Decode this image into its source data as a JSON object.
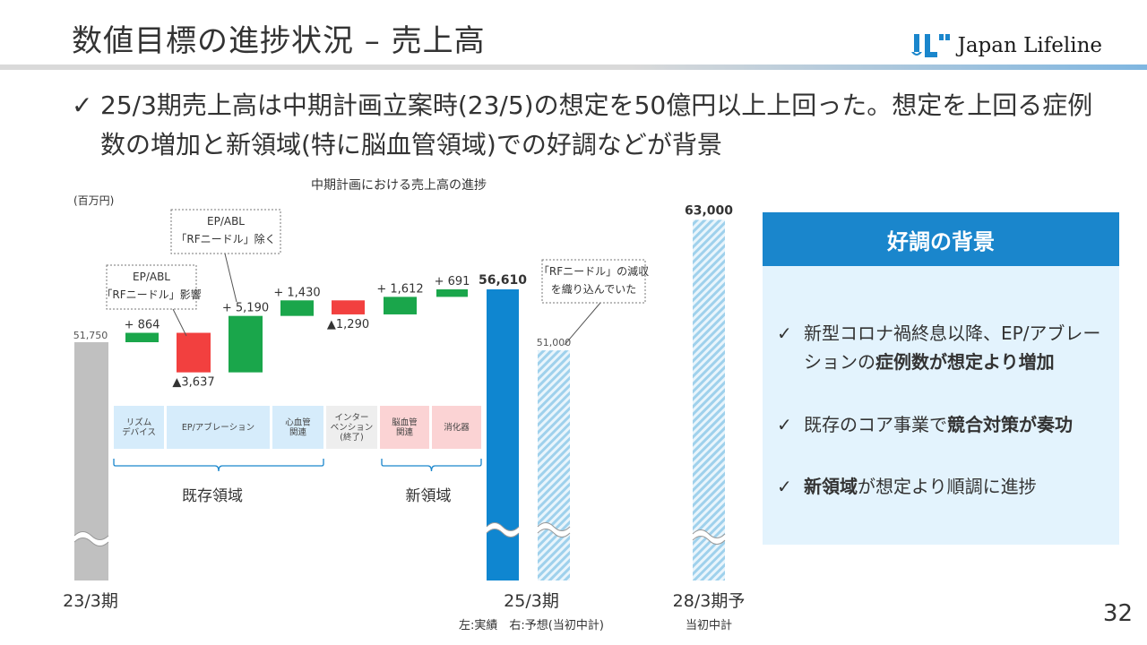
{
  "page": {
    "title": "数値目標の進捗状況 – 売上高",
    "logo_text": "Japan Lifeline",
    "headline_check": "✓",
    "headline": "25/3期売上高は中期計画立案時(23/5)の想定を50億円以上上回った。想定を上回る症例数の増加と新領域(特に脳血管領域)での好調などが背景",
    "page_number": "32"
  },
  "chart_data": {
    "type": "bar",
    "title": "中期計画における売上高の進捗",
    "unit_label": "(百万円)",
    "base": {
      "label": "23/3期",
      "value": 51750,
      "value_label": "51,750"
    },
    "steps": [
      {
        "value": 864,
        "label": "+ 864",
        "direction": "up"
      },
      {
        "value": -3637,
        "label": "▲3,637",
        "direction": "down"
      },
      {
        "value": 5190,
        "label": "+ 5,190",
        "direction": "up"
      },
      {
        "value": 1430,
        "label": "+ 1,430",
        "direction": "up"
      },
      {
        "value": -1290,
        "label": "▲1,290",
        "direction": "down"
      },
      {
        "value": 1612,
        "label": "+ 1,612",
        "direction": "up"
      },
      {
        "value": 691,
        "label": "+ 691",
        "direction": "up"
      }
    ],
    "actual_2503": {
      "value": 56610,
      "value_label": "56,610"
    },
    "plan_2503": {
      "value": 51000,
      "value_label": "51,000"
    },
    "target_2803": {
      "value": 63000,
      "value_label": "63,000"
    },
    "x_labels": [
      "23/3期",
      "25/3期",
      "28/3期予"
    ],
    "x_sublabels": [
      "左:実績　右:予想(当初中計)",
      "当初中計"
    ],
    "categories": [
      {
        "label": [
          "リズム",
          "デバイス"
        ],
        "group": "existing"
      },
      {
        "label": [
          "EP/アブレーション"
        ],
        "group": "existing"
      },
      {
        "label": [
          "心血管",
          "関連"
        ],
        "group": "existing"
      },
      {
        "label": [
          "インター",
          "ベンション",
          "(終了)"
        ],
        "group": "ended"
      },
      {
        "label": [
          "脳血管",
          "関連"
        ],
        "group": "new"
      },
      {
        "label": [
          "消化器"
        ],
        "group": "new"
      }
    ],
    "group_labels": {
      "existing": "既存領域",
      "new": "新領域"
    },
    "callouts": [
      {
        "lines": [
          "EP/ABL",
          "「RFニードル」影響"
        ]
      },
      {
        "lines": [
          "EP/ABL",
          "「RFニードル」除く"
        ]
      },
      {
        "lines": [
          "「RFニードル」の減収",
          "を織り込んでいた"
        ]
      }
    ],
    "colors": {
      "base": "#c0c0c0",
      "up": "#1aa64b",
      "down": "#f2403f",
      "actual": "#0f86d0",
      "plan_hatch": "#9fd1ec",
      "cat_existing": "#d6ecfb",
      "cat_ended": "#eeeeee",
      "cat_new": "#fbd3d4"
    }
  },
  "panel": {
    "title": "好調の背景",
    "check": "✓",
    "points": [
      {
        "pre": "新型コロナ禍終息以降、EP/アブレーションの",
        "bold": "症例数が想定より増加",
        "post": ""
      },
      {
        "pre": "既存のコア事業で",
        "bold": "競合対策が奏功",
        "post": ""
      },
      {
        "pre": "",
        "bold": "新領域",
        "post": "が想定より順調に進捗"
      }
    ]
  }
}
